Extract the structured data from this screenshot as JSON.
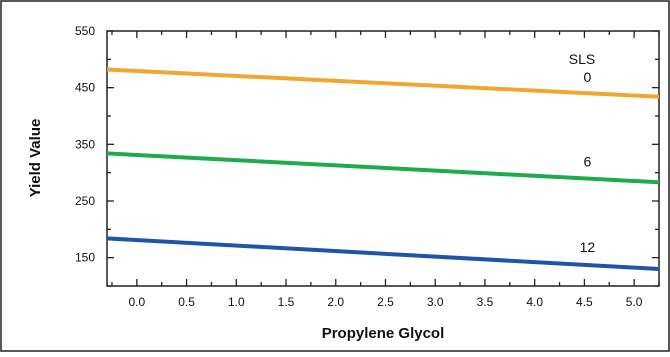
{
  "chart_data": {
    "type": "line",
    "xlabel": "Propylene Glycol",
    "ylabel": "Yield Value",
    "xlim": [
      -0.3,
      5.25
    ],
    "ylim": [
      100,
      550
    ],
    "x_ticks": [
      "0.0",
      "0.5",
      "1.0",
      "1.5",
      "2.0",
      "2.5",
      "3.0",
      "3.5",
      "4.0",
      "4.5",
      "5.0"
    ],
    "y_ticks": [
      "550",
      "450",
      "350",
      "250",
      "150"
    ],
    "legend_title": "SLS",
    "grid": false,
    "series": [
      {
        "name": "0",
        "color": "#f2a531",
        "x": [
          -0.3,
          5.25
        ],
        "y": [
          482,
          434
        ],
        "label_pos": [
          4.45,
          460
        ]
      },
      {
        "name": "6",
        "color": "#1faa4e",
        "x": [
          -0.3,
          5.25
        ],
        "y": [
          334,
          283
        ],
        "label_pos": [
          4.45,
          311
        ]
      },
      {
        "name": "12",
        "color": "#1f55a8",
        "x": [
          -0.3,
          5.25
        ],
        "y": [
          184,
          130
        ],
        "label_pos": [
          4.45,
          160
        ]
      }
    ]
  }
}
